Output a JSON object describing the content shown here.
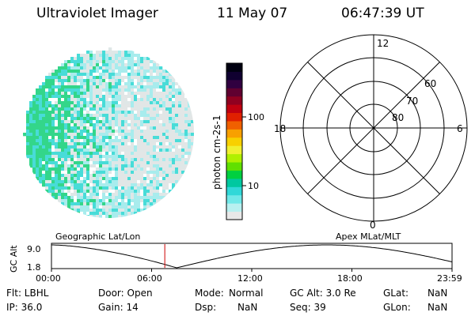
{
  "header": {
    "instrument": "Ultraviolet Imager",
    "date": "11 May 07",
    "time": "06:47:39 UT"
  },
  "colorbar": {
    "unit_label": "photon cm-2s-1",
    "tick_labels": [
      "100",
      "10"
    ],
    "colors": [
      "#e8e8e8",
      "#b8f0f0",
      "#70e8e8",
      "#30d8d8",
      "#00c8a0",
      "#00d040",
      "#60e000",
      "#b0f000",
      "#f0f030",
      "#f8d000",
      "#f8a000",
      "#f06000",
      "#e02000",
      "#c00010",
      "#900020",
      "#600030",
      "#300040",
      "#100030",
      "#000010"
    ]
  },
  "polar_grid": {
    "mlt_labels": {
      "top": "12",
      "bottom": "0",
      "left": "18",
      "right": "6"
    },
    "lat_labels": [
      "80",
      "70",
      "60"
    ]
  },
  "trajectory": {
    "left_title": "Geographic Lat/Lon",
    "right_title": "Apex  MLat/MLT",
    "y_axis_label": "GC Alt",
    "y_ticks": [
      "9.0",
      "1.8"
    ],
    "x_ticks": [
      "00:00",
      "06:00",
      "12:00",
      "18:00",
      "23:59"
    ],
    "current_time_hours": 6.79
  },
  "status": {
    "flt": "Flt: LBHL",
    "ip": "IP: 36.0",
    "door": "Door: Open",
    "gain": "Gain: 14",
    "mode_label": "Mode:",
    "mode_value": "Normal",
    "dsp_label": "Dsp:",
    "dsp_value": "NaN",
    "gcalt": "GC Alt: 3.0 Re",
    "seq": "Seq: 39",
    "glat_label": "GLat:",
    "glat_value": "NaN",
    "glon_label": "GLon:",
    "glon_value": "NaN"
  }
}
